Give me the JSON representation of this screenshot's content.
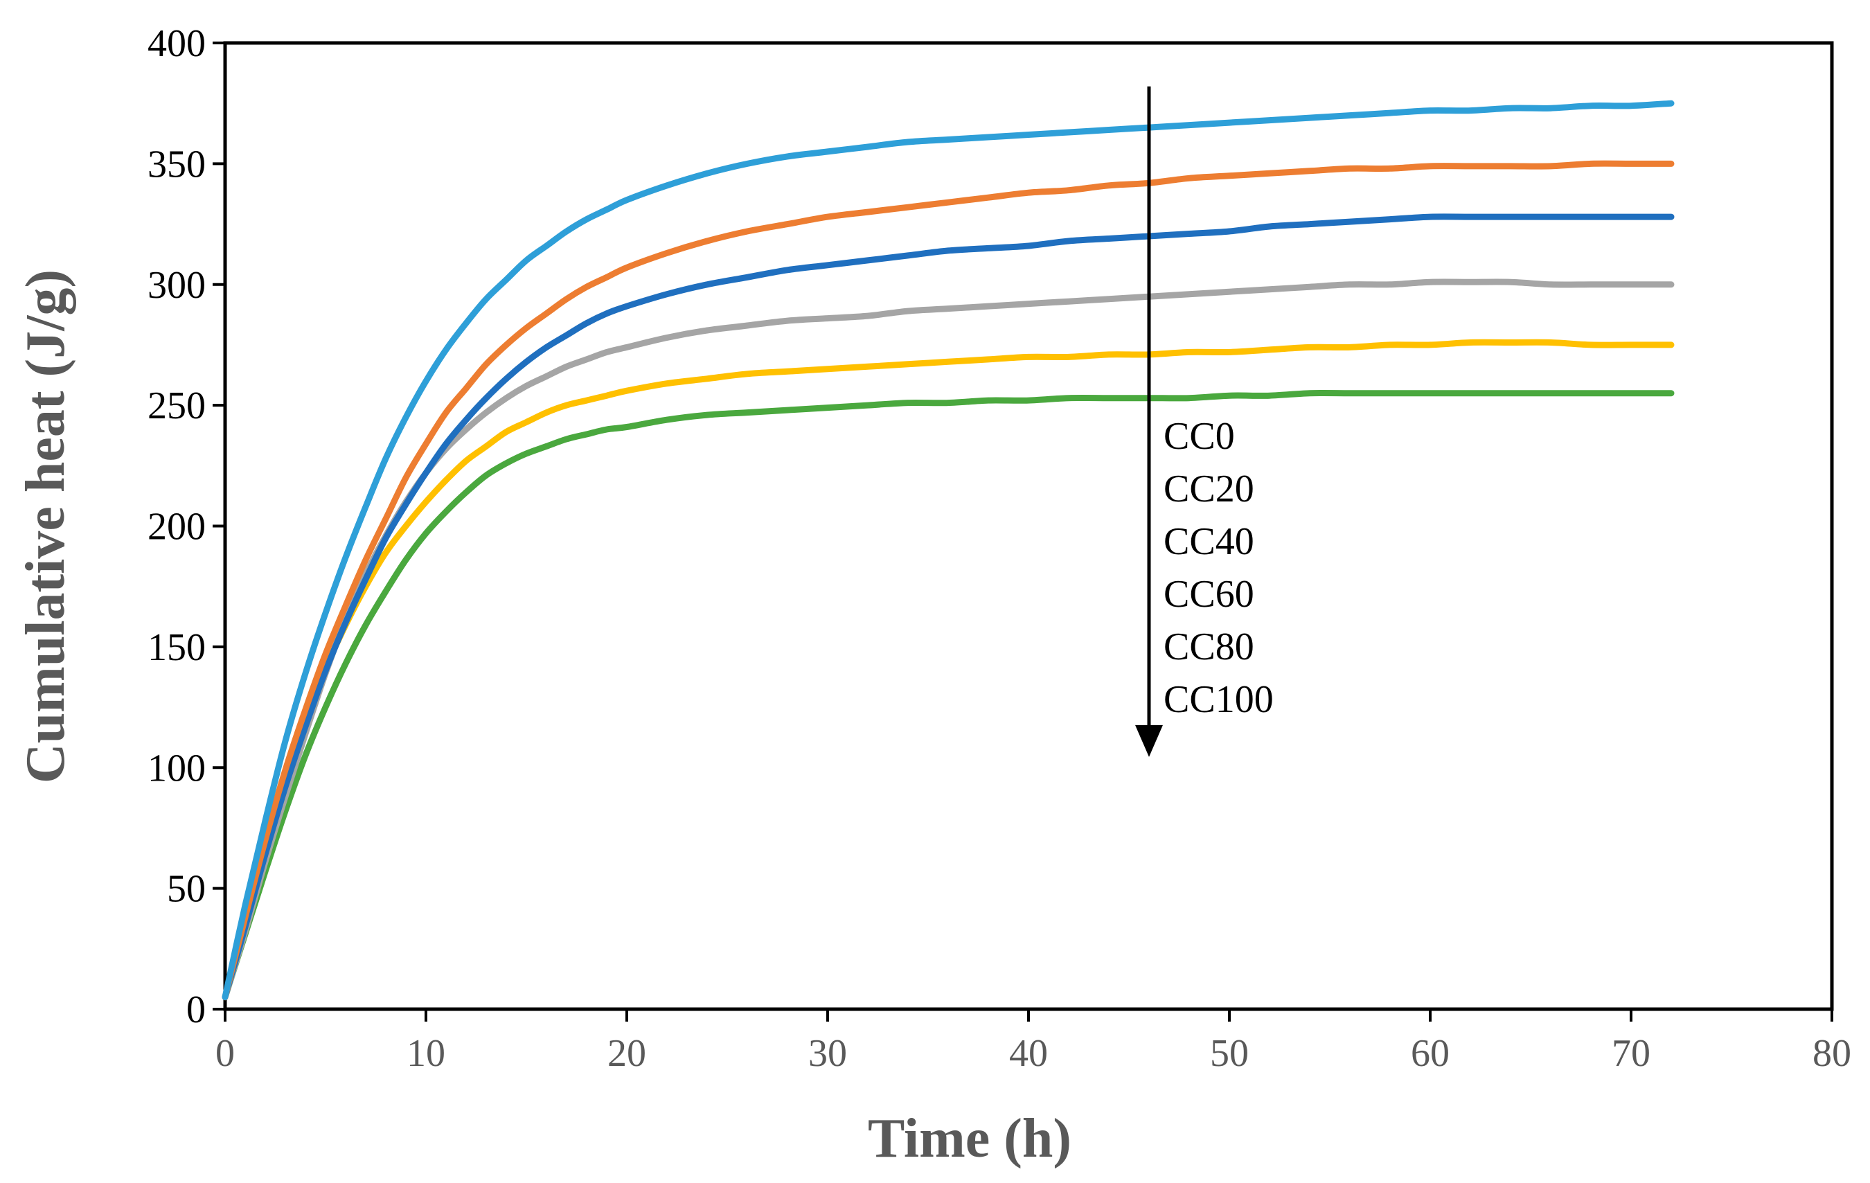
{
  "chart_data": {
    "type": "line",
    "title": "",
    "xlabel": "Time (h)",
    "ylabel": "Cumulative heat (J/g)",
    "xlim": [
      0,
      80
    ],
    "ylim": [
      0,
      400
    ],
    "xticks": [
      0,
      10,
      20,
      30,
      40,
      50,
      60,
      70,
      80
    ],
    "yticks": [
      0,
      50,
      100,
      150,
      200,
      250,
      300,
      350,
      400
    ],
    "grid": false,
    "legend": "none",
    "x": [
      0,
      1,
      2,
      3,
      4,
      5,
      6,
      7,
      8,
      9,
      10,
      11,
      12,
      13,
      14,
      15,
      16,
      17,
      18,
      19,
      20,
      22,
      24,
      26,
      28,
      30,
      32,
      34,
      36,
      38,
      40,
      42,
      44,
      46,
      48,
      50,
      52,
      54,
      56,
      58,
      60,
      62,
      64,
      66,
      68,
      70,
      72
    ],
    "series": [
      {
        "color": "#2E9FD8",
        "values": [
          5,
          43,
          78,
          111,
          139,
          164,
          187,
          208,
          228,
          245,
          260,
          273,
          284,
          294,
          302,
          310,
          316,
          322,
          327,
          331,
          335,
          341,
          346,
          350,
          353,
          355,
          357,
          359,
          360,
          361,
          362,
          363,
          364,
          365,
          366,
          367,
          368,
          369,
          370,
          371,
          372,
          372,
          373,
          373,
          374,
          374,
          375
        ]
      },
      {
        "color": "#ED7D31",
        "values": [
          5,
          38,
          70,
          99,
          124,
          147,
          167,
          186,
          203,
          220,
          234,
          247,
          257,
          267,
          275,
          282,
          288,
          294,
          299,
          303,
          307,
          313,
          318,
          322,
          325,
          328,
          330,
          332,
          334,
          336,
          338,
          339,
          341,
          342,
          344,
          345,
          346,
          347,
          348,
          348,
          349,
          349,
          349,
          349,
          350,
          350,
          350
        ]
      },
      {
        "color": "#1F6FBF",
        "values": [
          5,
          34,
          64,
          92,
          117,
          140,
          160,
          178,
          195,
          209,
          222,
          234,
          244,
          253,
          261,
          268,
          274,
          279,
          284,
          288,
          291,
          296,
          300,
          303,
          306,
          308,
          310,
          312,
          314,
          315,
          316,
          318,
          319,
          320,
          321,
          322,
          324,
          325,
          326,
          327,
          328,
          328,
          328,
          328,
          328,
          328,
          328
        ]
      },
      {
        "color": "#A5A5A5",
        "values": [
          5,
          32,
          61,
          88,
          114,
          139,
          161,
          180,
          196,
          210,
          222,
          232,
          240,
          247,
          253,
          258,
          262,
          266,
          269,
          272,
          274,
          278,
          281,
          283,
          285,
          286,
          287,
          289,
          290,
          291,
          292,
          293,
          294,
          295,
          296,
          297,
          298,
          299,
          300,
          300,
          301,
          301,
          301,
          300,
          300,
          300,
          300
        ]
      },
      {
        "color": "#FFC000",
        "values": [
          5,
          36,
          67,
          94,
          119,
          141,
          159,
          175,
          189,
          200,
          210,
          219,
          227,
          233,
          239,
          243,
          247,
          250,
          252,
          254,
          256,
          259,
          261,
          263,
          264,
          265,
          266,
          267,
          268,
          269,
          270,
          270,
          271,
          271,
          272,
          272,
          273,
          274,
          274,
          275,
          275,
          276,
          276,
          276,
          275,
          275,
          275
        ]
      },
      {
        "color": "#4AA83E",
        "values": [
          5,
          31,
          57,
          82,
          105,
          125,
          143,
          159,
          173,
          186,
          197,
          206,
          214,
          221,
          226,
          230,
          233,
          236,
          238,
          240,
          241,
          244,
          246,
          247,
          248,
          249,
          250,
          251,
          251,
          252,
          252,
          253,
          253,
          253,
          253,
          254,
          254,
          255,
          255,
          255,
          255,
          255,
          255,
          255,
          255,
          255,
          255
        ]
      }
    ],
    "annotation": {
      "arrow_from": [
        46,
        382
      ],
      "arrow_to": [
        46,
        105
      ],
      "labels": [
        "CC0",
        "CC20",
        "CC40",
        "CC60",
        "CC80",
        "CC100"
      ]
    }
  }
}
